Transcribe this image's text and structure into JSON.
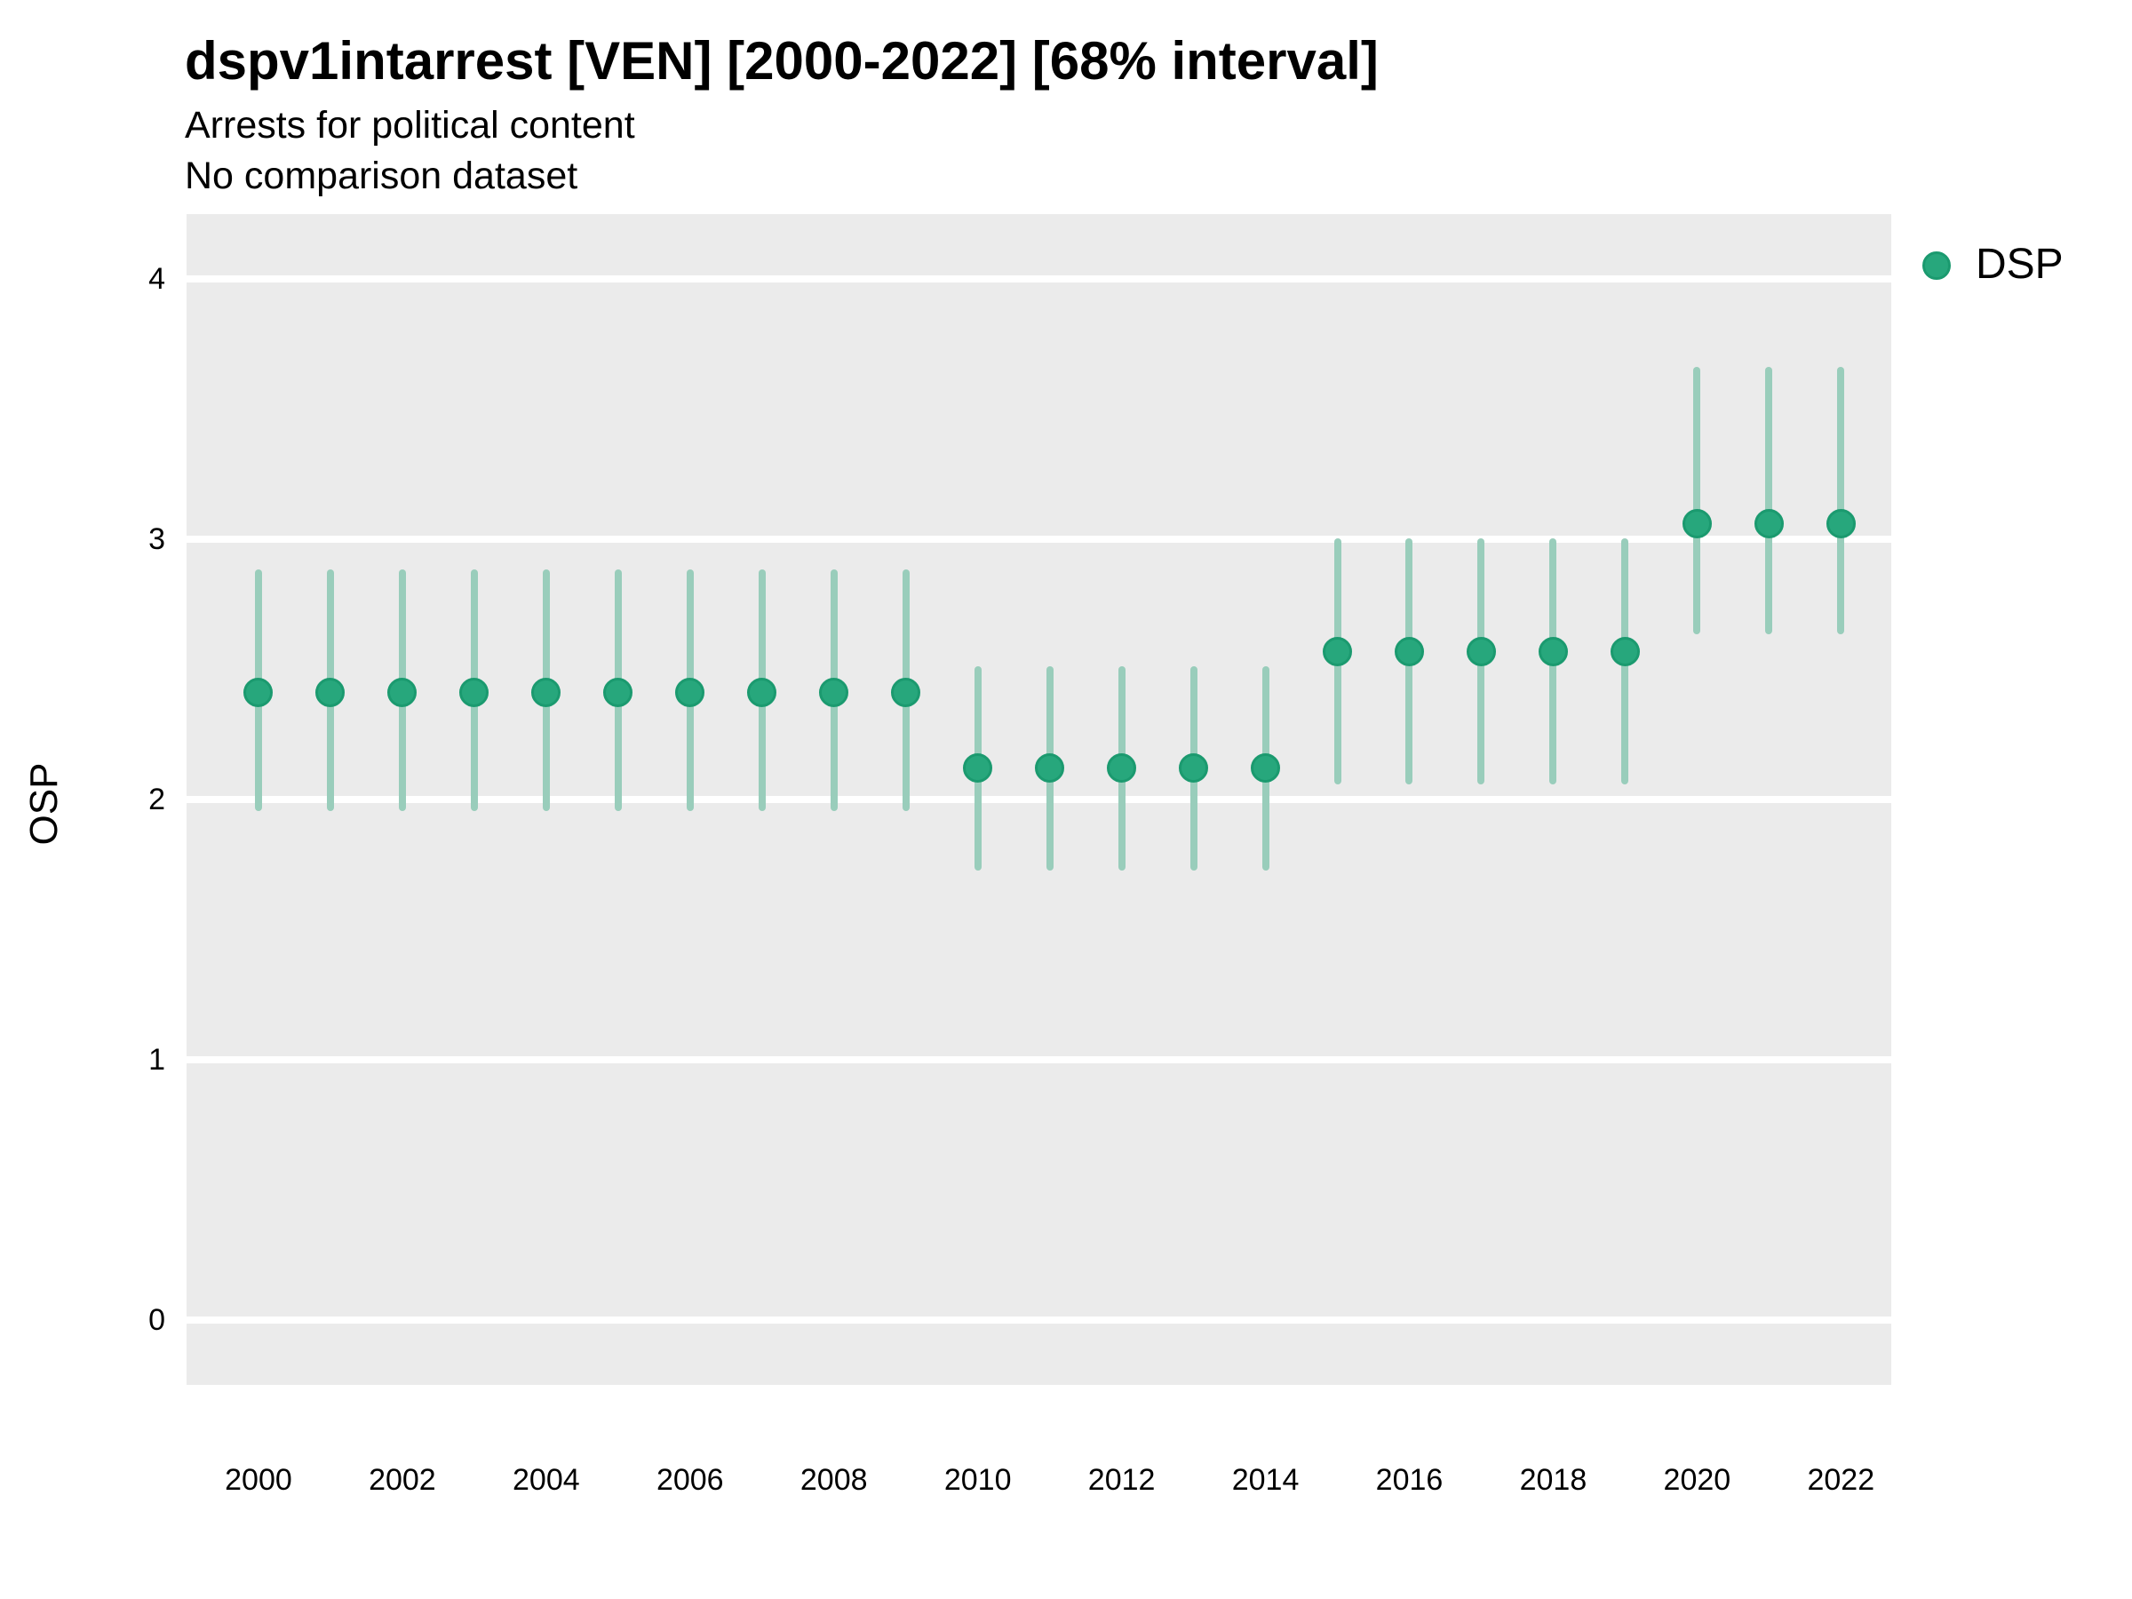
{
  "header": {
    "title": "dspv1intarrest [VEN] [2000-2022] [68% interval]",
    "subtitle_line1": "Arrests for political content",
    "subtitle_line2": "No comparison dataset"
  },
  "y_axis": {
    "label": "OSP"
  },
  "legend": {
    "label": "DSP",
    "position": "top-right"
  },
  "colors": {
    "panel_background": "#EBEBEB",
    "gridline": "#FFFFFF",
    "interval_bar": "#99CDBB",
    "point_fill": "#27A77C",
    "point_stroke": "#1B9A6F",
    "text": "#000000"
  },
  "chart_data": {
    "type": "scatter",
    "subtype": "pointrange",
    "title": "dspv1intarrest [VEN] [2000-2022] [68% interval]",
    "subtitle": "Arrests for political content",
    "note": "No comparison dataset",
    "interval": "68%",
    "xlabel": "",
    "ylabel": "OSP",
    "grid": "major-horizontal",
    "legend_position": "top-right",
    "x_domain": [
      1999.0,
      2022.7
    ],
    "y_domain": [
      -0.25,
      4.25
    ],
    "x_ticks": [
      2000,
      2002,
      2004,
      2006,
      2008,
      2010,
      2012,
      2014,
      2016,
      2018,
      2020,
      2022
    ],
    "y_ticks": [
      0,
      1,
      2,
      3,
      4
    ],
    "series": [
      {
        "name": "DSP",
        "points": [
          {
            "year": 2000,
            "estimate": 2.41,
            "lower": 1.97,
            "upper": 2.87
          },
          {
            "year": 2001,
            "estimate": 2.41,
            "lower": 1.97,
            "upper": 2.87
          },
          {
            "year": 2002,
            "estimate": 2.41,
            "lower": 1.97,
            "upper": 2.87
          },
          {
            "year": 2003,
            "estimate": 2.41,
            "lower": 1.97,
            "upper": 2.87
          },
          {
            "year": 2004,
            "estimate": 2.41,
            "lower": 1.97,
            "upper": 2.87
          },
          {
            "year": 2005,
            "estimate": 2.41,
            "lower": 1.97,
            "upper": 2.87
          },
          {
            "year": 2006,
            "estimate": 2.41,
            "lower": 1.97,
            "upper": 2.87
          },
          {
            "year": 2007,
            "estimate": 2.41,
            "lower": 1.97,
            "upper": 2.87
          },
          {
            "year": 2008,
            "estimate": 2.41,
            "lower": 1.97,
            "upper": 2.87
          },
          {
            "year": 2009,
            "estimate": 2.41,
            "lower": 1.97,
            "upper": 2.87
          },
          {
            "year": 2010,
            "estimate": 2.12,
            "lower": 1.74,
            "upper": 2.5
          },
          {
            "year": 2011,
            "estimate": 2.12,
            "lower": 1.74,
            "upper": 2.5
          },
          {
            "year": 2012,
            "estimate": 2.12,
            "lower": 1.74,
            "upper": 2.5
          },
          {
            "year": 2013,
            "estimate": 2.12,
            "lower": 1.74,
            "upper": 2.5
          },
          {
            "year": 2014,
            "estimate": 2.12,
            "lower": 1.74,
            "upper": 2.5
          },
          {
            "year": 2015,
            "estimate": 2.57,
            "lower": 2.07,
            "upper": 2.99
          },
          {
            "year": 2016,
            "estimate": 2.57,
            "lower": 2.07,
            "upper": 2.99
          },
          {
            "year": 2017,
            "estimate": 2.57,
            "lower": 2.07,
            "upper": 2.99
          },
          {
            "year": 2018,
            "estimate": 2.57,
            "lower": 2.07,
            "upper": 2.99
          },
          {
            "year": 2019,
            "estimate": 2.57,
            "lower": 2.07,
            "upper": 2.99
          },
          {
            "year": 2020,
            "estimate": 3.06,
            "lower": 2.65,
            "upper": 3.65
          },
          {
            "year": 2021,
            "estimate": 3.06,
            "lower": 2.65,
            "upper": 3.65
          },
          {
            "year": 2022,
            "estimate": 3.06,
            "lower": 2.65,
            "upper": 3.65
          }
        ]
      }
    ]
  }
}
